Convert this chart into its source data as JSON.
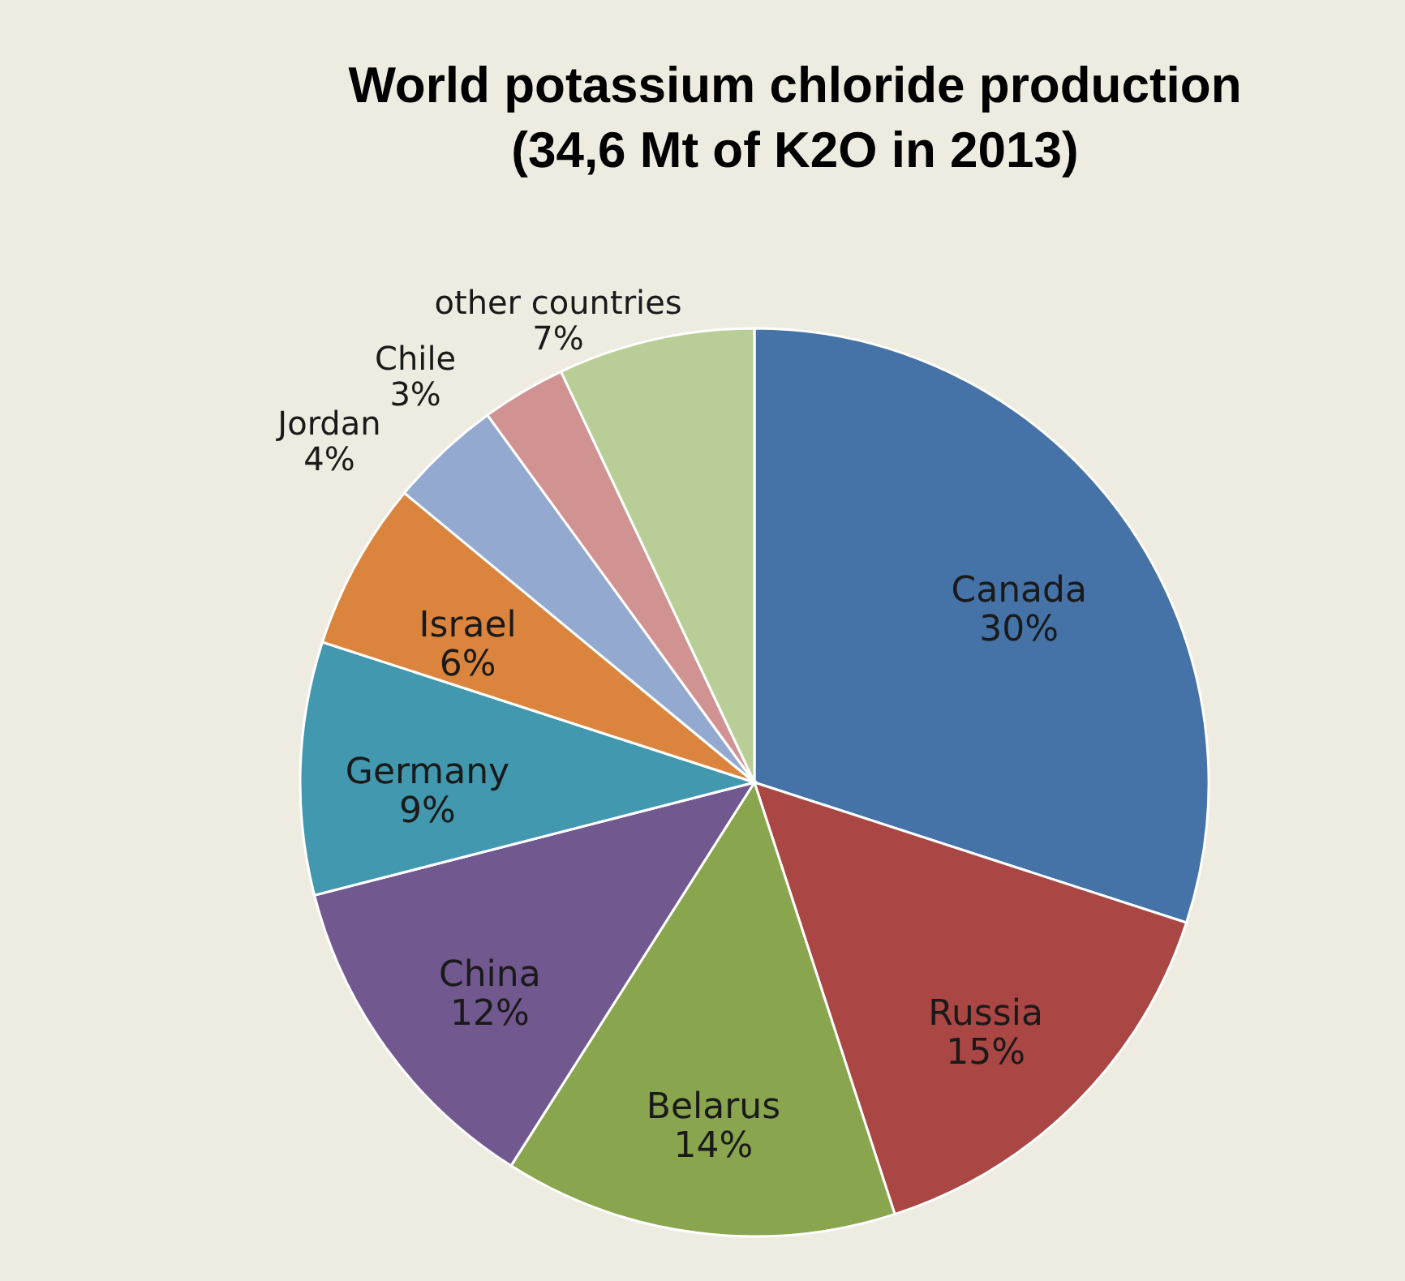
{
  "chart_data": {
    "type": "pie",
    "title": "World potassium chloride production (34,6 Mt of K2O in 2013)",
    "categories": [
      "Canada",
      "Russia",
      "Belarus",
      "China",
      "Germany",
      "Israel",
      "Jordan",
      "Chile",
      "other countries"
    ],
    "values": [
      30,
      15,
      14,
      12,
      9,
      6,
      4,
      3,
      7
    ],
    "value_labels": [
      "30%",
      "15%",
      "14%",
      "12%",
      "9%",
      "6%",
      "4%",
      "3%",
      "7%"
    ],
    "colors": [
      "#4572a7",
      "#aa4643",
      "#89a54e",
      "#71588f",
      "#4198af",
      "#db843d",
      "#93a9cf",
      "#d19392",
      "#b9cd96"
    ]
  }
}
